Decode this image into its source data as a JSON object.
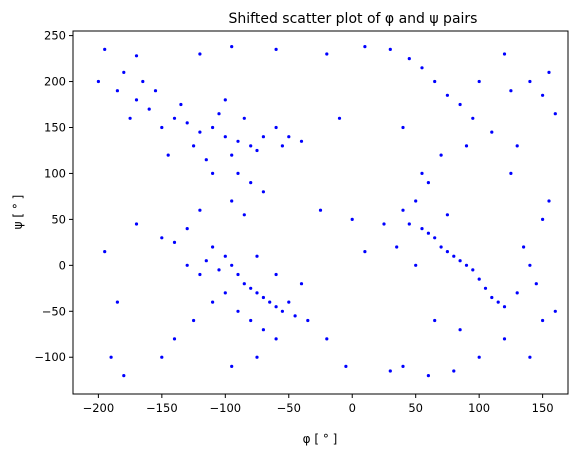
{
  "chart_data": {
    "type": "scatter",
    "title": "Shifted scatter plot of φ and ψ pairs",
    "xlabel": "φ [ ° ]",
    "ylabel": "ψ [ ° ]",
    "xlim": [
      -220,
      170
    ],
    "ylim": [
      -140,
      255
    ],
    "xticks": [
      "−200",
      "−150",
      "−100",
      "−50",
      "0",
      "50",
      "100",
      "150"
    ],
    "yticks": [
      "−100",
      "−50",
      "0",
      "50",
      "100",
      "150",
      "200",
      "250"
    ],
    "xtick_values": [
      -200,
      -150,
      -100,
      -50,
      0,
      50,
      100,
      150
    ],
    "ytick_values": [
      -100,
      -50,
      0,
      50,
      100,
      150,
      200,
      250
    ],
    "grid": false,
    "legend": null,
    "marker_color": "#0000ff",
    "series": [
      {
        "points": [
          [
            -120,
            145
          ],
          [
            -110,
            150
          ],
          [
            -100,
            140
          ],
          [
            -130,
            155
          ],
          [
            -90,
            135
          ],
          [
            -140,
            160
          ],
          [
            -150,
            150
          ],
          [
            -80,
            130
          ],
          [
            -70,
            140
          ],
          [
            -60,
            150
          ],
          [
            -50,
            140
          ],
          [
            -125,
            130
          ],
          [
            -105,
            165
          ],
          [
            -95,
            120
          ],
          [
            -160,
            170
          ],
          [
            -170,
            180
          ],
          [
            -185,
            190
          ],
          [
            -175,
            160
          ],
          [
            -145,
            120
          ],
          [
            -115,
            115
          ],
          [
            -85,
            160
          ],
          [
            -75,
            125
          ],
          [
            -55,
            130
          ],
          [
            -40,
            135
          ],
          [
            -135,
            175
          ],
          [
            -155,
            190
          ],
          [
            -165,
            200
          ],
          [
            -180,
            210
          ],
          [
            -100,
            180
          ],
          [
            -110,
            100
          ],
          [
            -90,
            100
          ],
          [
            -80,
            90
          ],
          [
            -70,
            80
          ],
          [
            -95,
            70
          ],
          [
            -85,
            55
          ],
          [
            -120,
            60
          ],
          [
            -130,
            40
          ],
          [
            -140,
            25
          ],
          [
            -110,
            20
          ],
          [
            -100,
            10
          ],
          [
            -95,
            0
          ],
          [
            -90,
            -10
          ],
          [
            -85,
            -20
          ],
          [
            -80,
            -25
          ],
          [
            -75,
            -30
          ],
          [
            -70,
            -35
          ],
          [
            -65,
            -40
          ],
          [
            -60,
            -45
          ],
          [
            -55,
            -50
          ],
          [
            -50,
            -40
          ],
          [
            -105,
            -5
          ],
          [
            -115,
            5
          ],
          [
            -120,
            -10
          ],
          [
            -100,
            -30
          ],
          [
            -90,
            -50
          ],
          [
            -80,
            -60
          ],
          [
            -70,
            -70
          ],
          [
            -60,
            -80
          ],
          [
            -110,
            -40
          ],
          [
            -125,
            -60
          ],
          [
            -140,
            -80
          ],
          [
            -150,
            -100
          ],
          [
            -95,
            -110
          ],
          [
            -75,
            -100
          ],
          [
            -45,
            -55
          ],
          [
            -35,
            -60
          ],
          [
            -40,
            -20
          ],
          [
            -60,
            -10
          ],
          [
            -75,
            10
          ],
          [
            -130,
            0
          ],
          [
            -150,
            30
          ],
          [
            -170,
            45
          ],
          [
            -195,
            15
          ],
          [
            -185,
            -40
          ],
          [
            -190,
            -100
          ],
          [
            -180,
            -120
          ],
          [
            -200,
            200
          ],
          [
            -195,
            235
          ],
          [
            -170,
            228
          ],
          [
            -120,
            230
          ],
          [
            -95,
            238
          ],
          [
            -60,
            235
          ],
          [
            -20,
            230
          ],
          [
            10,
            238
          ],
          [
            30,
            235
          ],
          [
            45,
            225
          ],
          [
            55,
            215
          ],
          [
            65,
            200
          ],
          [
            75,
            185
          ],
          [
            85,
            175
          ],
          [
            95,
            160
          ],
          [
            110,
            145
          ],
          [
            125,
            190
          ],
          [
            140,
            200
          ],
          [
            150,
            185
          ],
          [
            160,
            165
          ],
          [
            155,
            210
          ],
          [
            120,
            230
          ],
          [
            100,
            200
          ],
          [
            130,
            130
          ],
          [
            90,
            130
          ],
          [
            70,
            120
          ],
          [
            60,
            90
          ],
          [
            50,
            70
          ],
          [
            40,
            60
          ],
          [
            45,
            45
          ],
          [
            55,
            40
          ],
          [
            60,
            35
          ],
          [
            65,
            30
          ],
          [
            70,
            20
          ],
          [
            75,
            15
          ],
          [
            80,
            10
          ],
          [
            85,
            5
          ],
          [
            90,
            0
          ],
          [
            95,
            -5
          ],
          [
            100,
            -15
          ],
          [
            105,
            -25
          ],
          [
            110,
            -35
          ],
          [
            115,
            -40
          ],
          [
            120,
            -45
          ],
          [
            130,
            -30
          ],
          [
            140,
            0
          ],
          [
            150,
            50
          ],
          [
            155,
            70
          ],
          [
            160,
            -50
          ],
          [
            150,
            -60
          ],
          [
            120,
            -80
          ],
          [
            100,
            -100
          ],
          [
            80,
            -115
          ],
          [
            60,
            -120
          ],
          [
            40,
            -110
          ],
          [
            30,
            -115
          ],
          [
            55,
            100
          ],
          [
            40,
            150
          ],
          [
            -10,
            160
          ],
          [
            0,
            50
          ],
          [
            -5,
            -110
          ],
          [
            -20,
            -80
          ],
          [
            -25,
            60
          ],
          [
            10,
            15
          ],
          [
            25,
            45
          ],
          [
            35,
            20
          ],
          [
            65,
            -60
          ],
          [
            85,
            -70
          ],
          [
            140,
            -100
          ],
          [
            125,
            100
          ],
          [
            135,
            20
          ],
          [
            145,
            -20
          ],
          [
            75,
            55
          ],
          [
            50,
            0
          ]
        ]
      }
    ]
  }
}
